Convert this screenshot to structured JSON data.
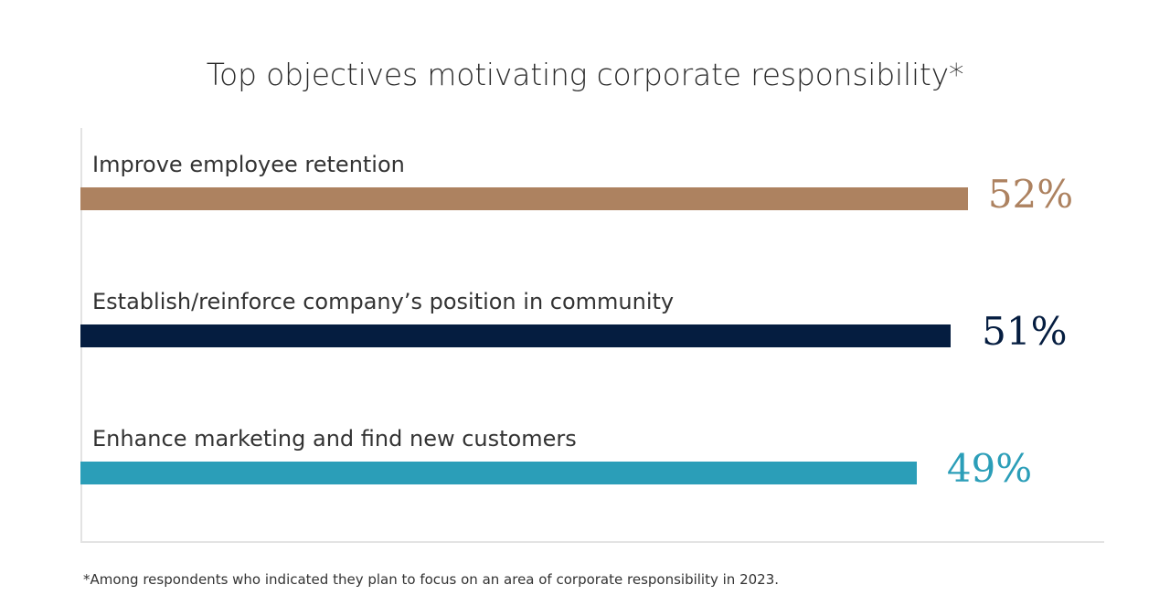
{
  "title": "Top objectives motivating corporate responsibility*",
  "footnote": "*Among respondents who indicated they plan to focus on an area of corporate responsibility in 2023.",
  "colors": {
    "bar_1": "#ad8260",
    "bar_2": "#051d40",
    "bar_3": "#2b9eb8",
    "axis": "#e3e3e3",
    "text": "#333333"
  },
  "chart_data": {
    "type": "bar",
    "orientation": "horizontal",
    "title": "Top objectives motivating corporate responsibility*",
    "xlabel": "",
    "ylabel": "",
    "unit": "%",
    "grid": false,
    "categories": [
      "Improve employee retention",
      "Establish/reinforce company’s position in community",
      "Enhance marketing and find new customers"
    ],
    "values": [
      52,
      51,
      49
    ],
    "value_labels": [
      "52%",
      "51%",
      "49%"
    ]
  }
}
